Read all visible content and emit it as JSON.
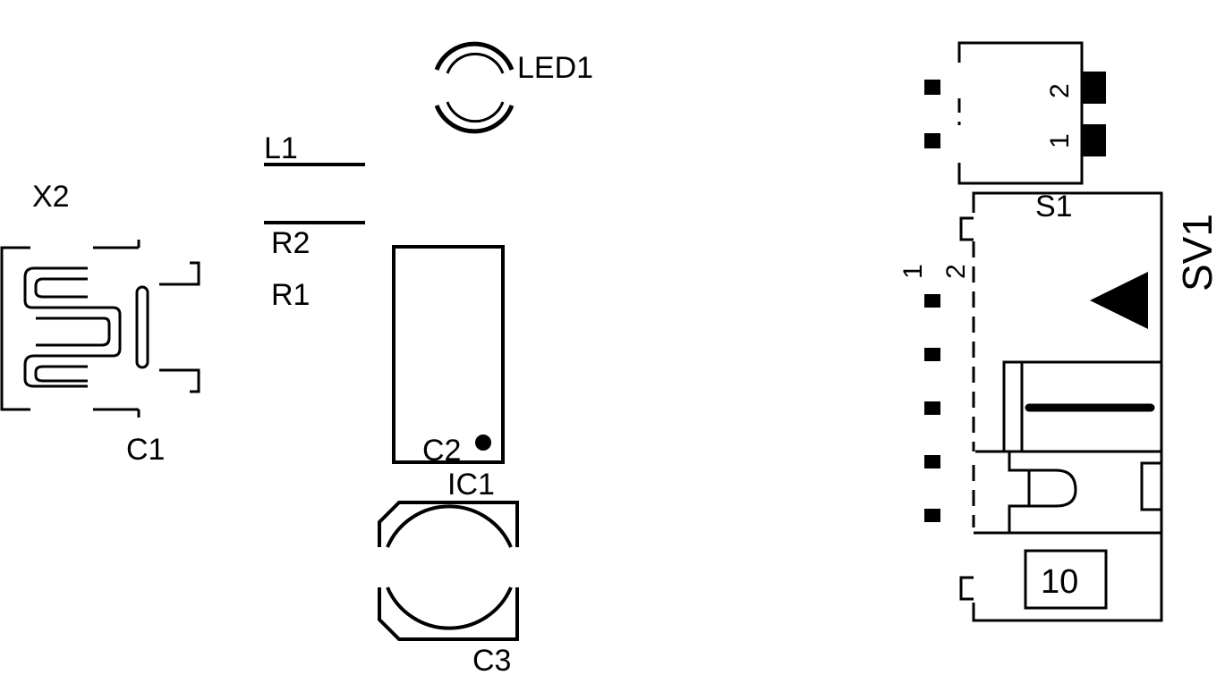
{
  "components": {
    "x2": "X2",
    "c1": "C1",
    "l1": "L1",
    "r2": "R2",
    "r1": "R1",
    "led1": "LED1",
    "c2": "C2",
    "ic1": "IC1",
    "c3": "C3",
    "s1": "S1",
    "sv1": "SV1"
  },
  "pins": {
    "s1_pin_2": "2",
    "s1_pin_1": "1",
    "sv1_pin_1": "1",
    "sv1_pin_2": "2",
    "sv1_value": "10"
  },
  "colors": {
    "ink": "#000000",
    "background": "#ffffff"
  }
}
